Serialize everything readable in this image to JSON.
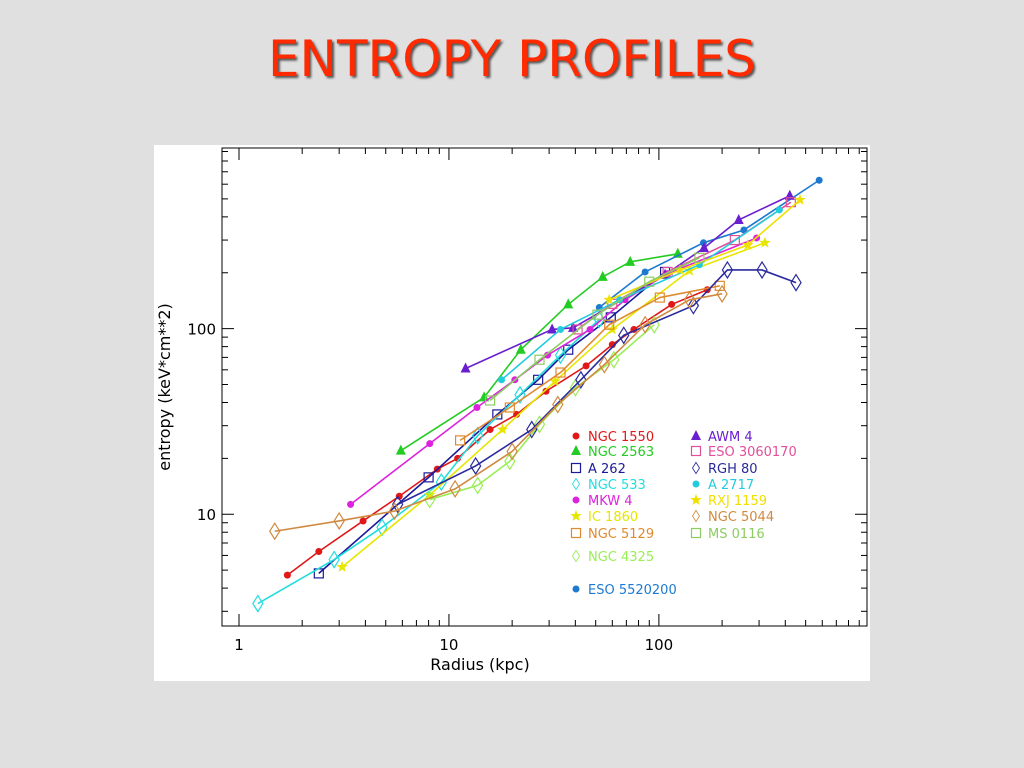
{
  "chart_data": {
    "type": "line",
    "title": "ENTROPY PROFILES",
    "xlabel": "Radius (kpc)",
    "ylabel": "entropy (keV*cm**2)",
    "xlog": true,
    "ylog": true,
    "xlim": [
      0.83,
      980
    ],
    "ylim": [
      2.5,
      940
    ],
    "xticks": [
      1,
      10,
      100
    ],
    "yticks": [
      10,
      100
    ],
    "xminorticks": [
      2,
      3,
      4,
      5,
      6,
      7,
      8,
      9,
      20,
      30,
      40,
      50,
      60,
      70,
      80,
      90,
      200,
      300,
      400,
      500,
      600,
      700,
      800,
      900
    ],
    "yminorticks": [
      3,
      4,
      5,
      6,
      7,
      8,
      9,
      20,
      30,
      40,
      50,
      60,
      70,
      80,
      90,
      200,
      300,
      400,
      500,
      600,
      700,
      800,
      900
    ],
    "series": [
      {
        "name": "NGC 1550",
        "color": "#e01818",
        "marker": "dot",
        "x": [
          1.7,
          2.4,
          3.9,
          5.8,
          8.8,
          11,
          15.7,
          21,
          29,
          45,
          60,
          76,
          115,
          170
        ],
        "values": [
          4.7,
          6.3,
          9.2,
          12.5,
          17.5,
          20,
          28.6,
          34.5,
          46,
          63,
          82,
          99,
          135,
          162
        ]
      },
      {
        "name": "NGC 2563",
        "color": "#22cc22",
        "marker": "triangle",
        "x": [
          5.9,
          14.7,
          22,
          37,
          54,
          73,
          123
        ],
        "values": [
          22,
          42.6,
          77,
          135,
          190,
          229,
          253
        ]
      },
      {
        "name": "A 262",
        "color": "#1a1a9a",
        "marker": "square",
        "x": [
          2.4,
          8,
          17,
          26.6,
          37,
          59,
          107
        ],
        "values": [
          4.8,
          15.8,
          34.5,
          53,
          77,
          115,
          202
        ]
      },
      {
        "name": "NGC 533",
        "color": "#22dddd",
        "marker": "diamond",
        "x": [
          1.23,
          2.84,
          4.8,
          9.2,
          13.7,
          21.8,
          34,
          52
        ],
        "values": [
          3.3,
          5.7,
          8.5,
          14.9,
          26.5,
          44,
          72,
          112
        ]
      },
      {
        "name": "MKW 4",
        "color": "#dd22dd",
        "marker": "dot",
        "x": [
          3.4,
          8.1,
          13.6,
          20.6,
          29.5,
          47,
          69,
          110,
          292
        ],
        "values": [
          11.3,
          24,
          37.6,
          53,
          72,
          99,
          143,
          198,
          308
        ]
      },
      {
        "name": "IC 1860",
        "color": "#e6e600",
        "marker": "star",
        "x": [
          3.1,
          8.1,
          18,
          32,
          60,
          140,
          320
        ],
        "values": [
          5.2,
          12.7,
          28.6,
          52,
          99,
          205,
          290
        ]
      },
      {
        "name": "NGC 5129",
        "color": "#e08a30",
        "marker": "square",
        "x": [
          11.3,
          19.5,
          34,
          58,
          101,
          195
        ],
        "values": [
          25,
          37.6,
          58,
          105,
          147,
          170
        ]
      },
      {
        "name": "NGC 4325",
        "color": "#99ee55",
        "marker": "diamond",
        "x": [
          8.1,
          13.7,
          19.5,
          27,
          40,
          61,
          95
        ],
        "values": [
          12,
          14.3,
          19.3,
          30.5,
          48,
          68,
          105
        ]
      },
      {
        "name": "ESO 5520200",
        "color": "#1e7ad0",
        "marker": "dot",
        "x": [
          52,
          86,
          163,
          254,
          580
        ],
        "values": [
          130,
          202,
          290,
          340,
          630
        ]
      },
      {
        "name": "AWM 4",
        "color": "#6a1ed0",
        "marker": "triangle",
        "x": [
          12,
          31,
          39,
          107,
          164,
          240,
          420
        ],
        "values": [
          61,
          99,
          101,
          195,
          272,
          385,
          520
        ]
      },
      {
        "name": "ESO 3060170",
        "color": "#e0509a",
        "marker": "square",
        "x": [
          41,
          60,
          110,
          230,
          425
        ],
        "values": [
          99,
          136,
          202,
          300,
          480
        ]
      },
      {
        "name": "RGH 80",
        "color": "#2a2a9e",
        "marker": "diamond",
        "x": [
          5.7,
          13.4,
          24.8,
          42.5,
          68,
          146,
          212,
          310,
          450
        ],
        "values": [
          11.3,
          18.2,
          28.6,
          53,
          92,
          133,
          207,
          207,
          177
        ]
      },
      {
        "name": "A 2717",
        "color": "#22ccdd",
        "marker": "dot",
        "x": [
          17.8,
          34,
          65,
          156,
          375
        ],
        "values": [
          53,
          99,
          143,
          221,
          436
        ]
      },
      {
        "name": "RXJ 1159",
        "color": "#f0e000",
        "marker": "star",
        "x": [
          58,
          126,
          265,
          470
        ],
        "values": [
          143,
          207,
          282,
          494
        ]
      },
      {
        "name": "NGC 5044",
        "color": "#d08a40",
        "marker": "diamond",
        "x": [
          1.48,
          3,
          5.5,
          10.7,
          20,
          33,
          55,
          86,
          140,
          200
        ],
        "values": [
          8.1,
          9.2,
          10.4,
          13.7,
          21.8,
          39,
          64,
          105,
          143,
          154
        ]
      },
      {
        "name": "MS 0116",
        "color": "#8ccc60",
        "marker": "square",
        "x": [
          15.7,
          27,
          51,
          90,
          156
        ],
        "values": [
          41,
          68,
          119,
          179,
          241
        ]
      }
    ]
  }
}
